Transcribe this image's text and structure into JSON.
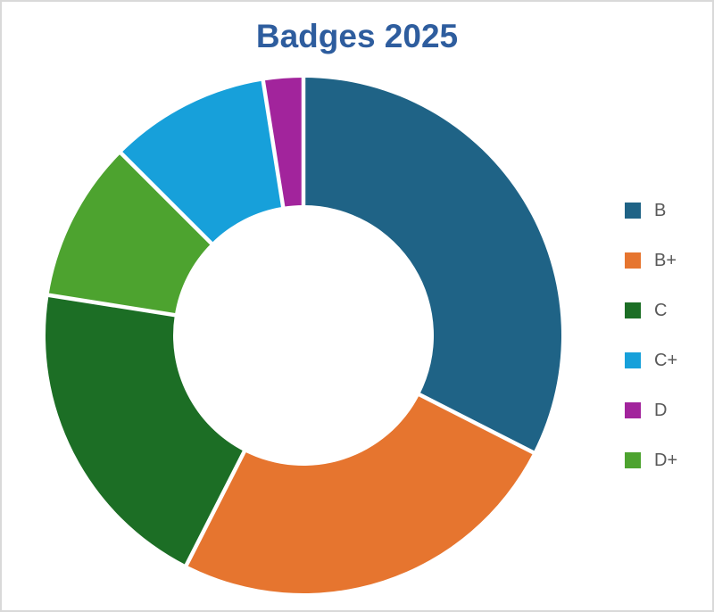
{
  "page": {
    "background": "#FFFFFF",
    "border_color": "#D9D9D9"
  },
  "chart_data": {
    "type": "pie",
    "subtype": "donut",
    "title": "Badges 2025",
    "title_color": "#2E5D9E",
    "legend_position": "right",
    "legend_text_color": "#595959",
    "legend": [
      "B",
      "B+",
      "C",
      "C+",
      "D",
      "D+"
    ],
    "series": [
      {
        "label": "B",
        "percent": 32.5,
        "color": "#1F6386"
      },
      {
        "label": "B+",
        "percent": 25,
        "color": "#E6752F"
      },
      {
        "label": "C",
        "percent": 20,
        "color": "#1C6E25"
      },
      {
        "label": "C+",
        "percent": 10,
        "color": "#17A0DA"
      },
      {
        "label": "D",
        "percent": 2.5,
        "color": "#A2249C"
      },
      {
        "label": "D+",
        "percent": 10,
        "color": "#4DA32F"
      }
    ],
    "draw_order_clockwise": [
      "B",
      "B+",
      "C",
      "D+",
      "C+",
      "D"
    ],
    "start_angle_deg": 0,
    "donut_hole_ratio": 0.5,
    "separator_color": "#FFFFFF"
  }
}
